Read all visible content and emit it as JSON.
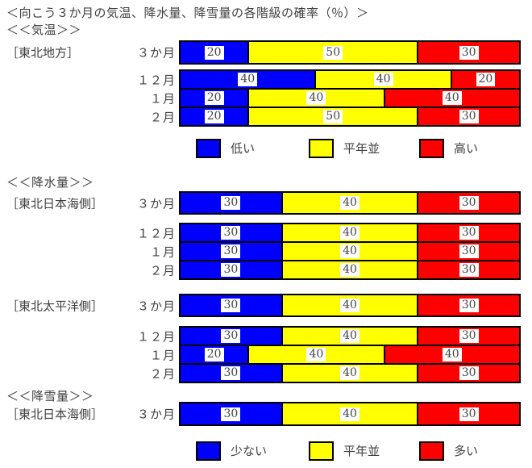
{
  "title": "＜向こう３か月の気温、降水量、降雪量の各階級の確率（％）＞",
  "colors": {
    "below": "#0000ff",
    "normal": "#ffff00",
    "above": "#ff0000",
    "border": "#000000",
    "text": "#404040"
  },
  "chart_data": {
    "type": "bar",
    "stacked": true,
    "orientation": "horizontal",
    "unit": "%",
    "title": "＜向こう３か月の気温、降水量、降雪量の各階級の確率（％）＞",
    "categories_colors": [
      "#0000ff",
      "#ffff00",
      "#ff0000"
    ],
    "xlim": [
      0,
      100
    ],
    "sections": [
      {
        "header": "＜＜気温＞＞",
        "legend": [
          {
            "label": "低い",
            "color": "#0000ff"
          },
          {
            "label": "平年並",
            "color": "#ffff00"
          },
          {
            "label": "高い",
            "color": "#ff0000"
          }
        ],
        "groups": [
          {
            "region": "［東北地方］",
            "rows": [
              {
                "period": "３か月",
                "seasonal": true,
                "values": [
                  20,
                  50,
                  30
                ]
              },
              {
                "period": "１２月",
                "values": [
                  40,
                  40,
                  20
                ]
              },
              {
                "period": "１月",
                "values": [
                  20,
                  40,
                  40
                ]
              },
              {
                "period": "２月",
                "values": [
                  20,
                  50,
                  30
                ]
              }
            ]
          }
        ]
      },
      {
        "header": "＜＜降水量＞＞",
        "groups": [
          {
            "region": "［東北日本海側］",
            "rows": [
              {
                "period": "３か月",
                "seasonal": true,
                "values": [
                  30,
                  40,
                  30
                ]
              },
              {
                "period": "１２月",
                "values": [
                  30,
                  40,
                  30
                ]
              },
              {
                "period": "１月",
                "values": [
                  30,
                  40,
                  30
                ]
              },
              {
                "period": "２月",
                "values": [
                  30,
                  40,
                  30
                ]
              }
            ]
          },
          {
            "region": "［東北太平洋側］",
            "rows": [
              {
                "period": "３か月",
                "seasonal": true,
                "values": [
                  30,
                  40,
                  30
                ]
              },
              {
                "period": "１２月",
                "values": [
                  30,
                  40,
                  30
                ]
              },
              {
                "period": "１月",
                "values": [
                  20,
                  40,
                  40
                ]
              },
              {
                "period": "２月",
                "values": [
                  30,
                  40,
                  30
                ]
              }
            ]
          }
        ]
      },
      {
        "header": "＜＜降雪量＞＞",
        "legend": [
          {
            "label": "少ない",
            "color": "#0000ff"
          },
          {
            "label": "平年並",
            "color": "#ffff00"
          },
          {
            "label": "多い",
            "color": "#ff0000"
          }
        ],
        "groups": [
          {
            "region": "［東北日本海側］",
            "rows": [
              {
                "period": "３か月",
                "seasonal": true,
                "values": [
                  30,
                  40,
                  30
                ]
              }
            ]
          }
        ]
      }
    ]
  }
}
